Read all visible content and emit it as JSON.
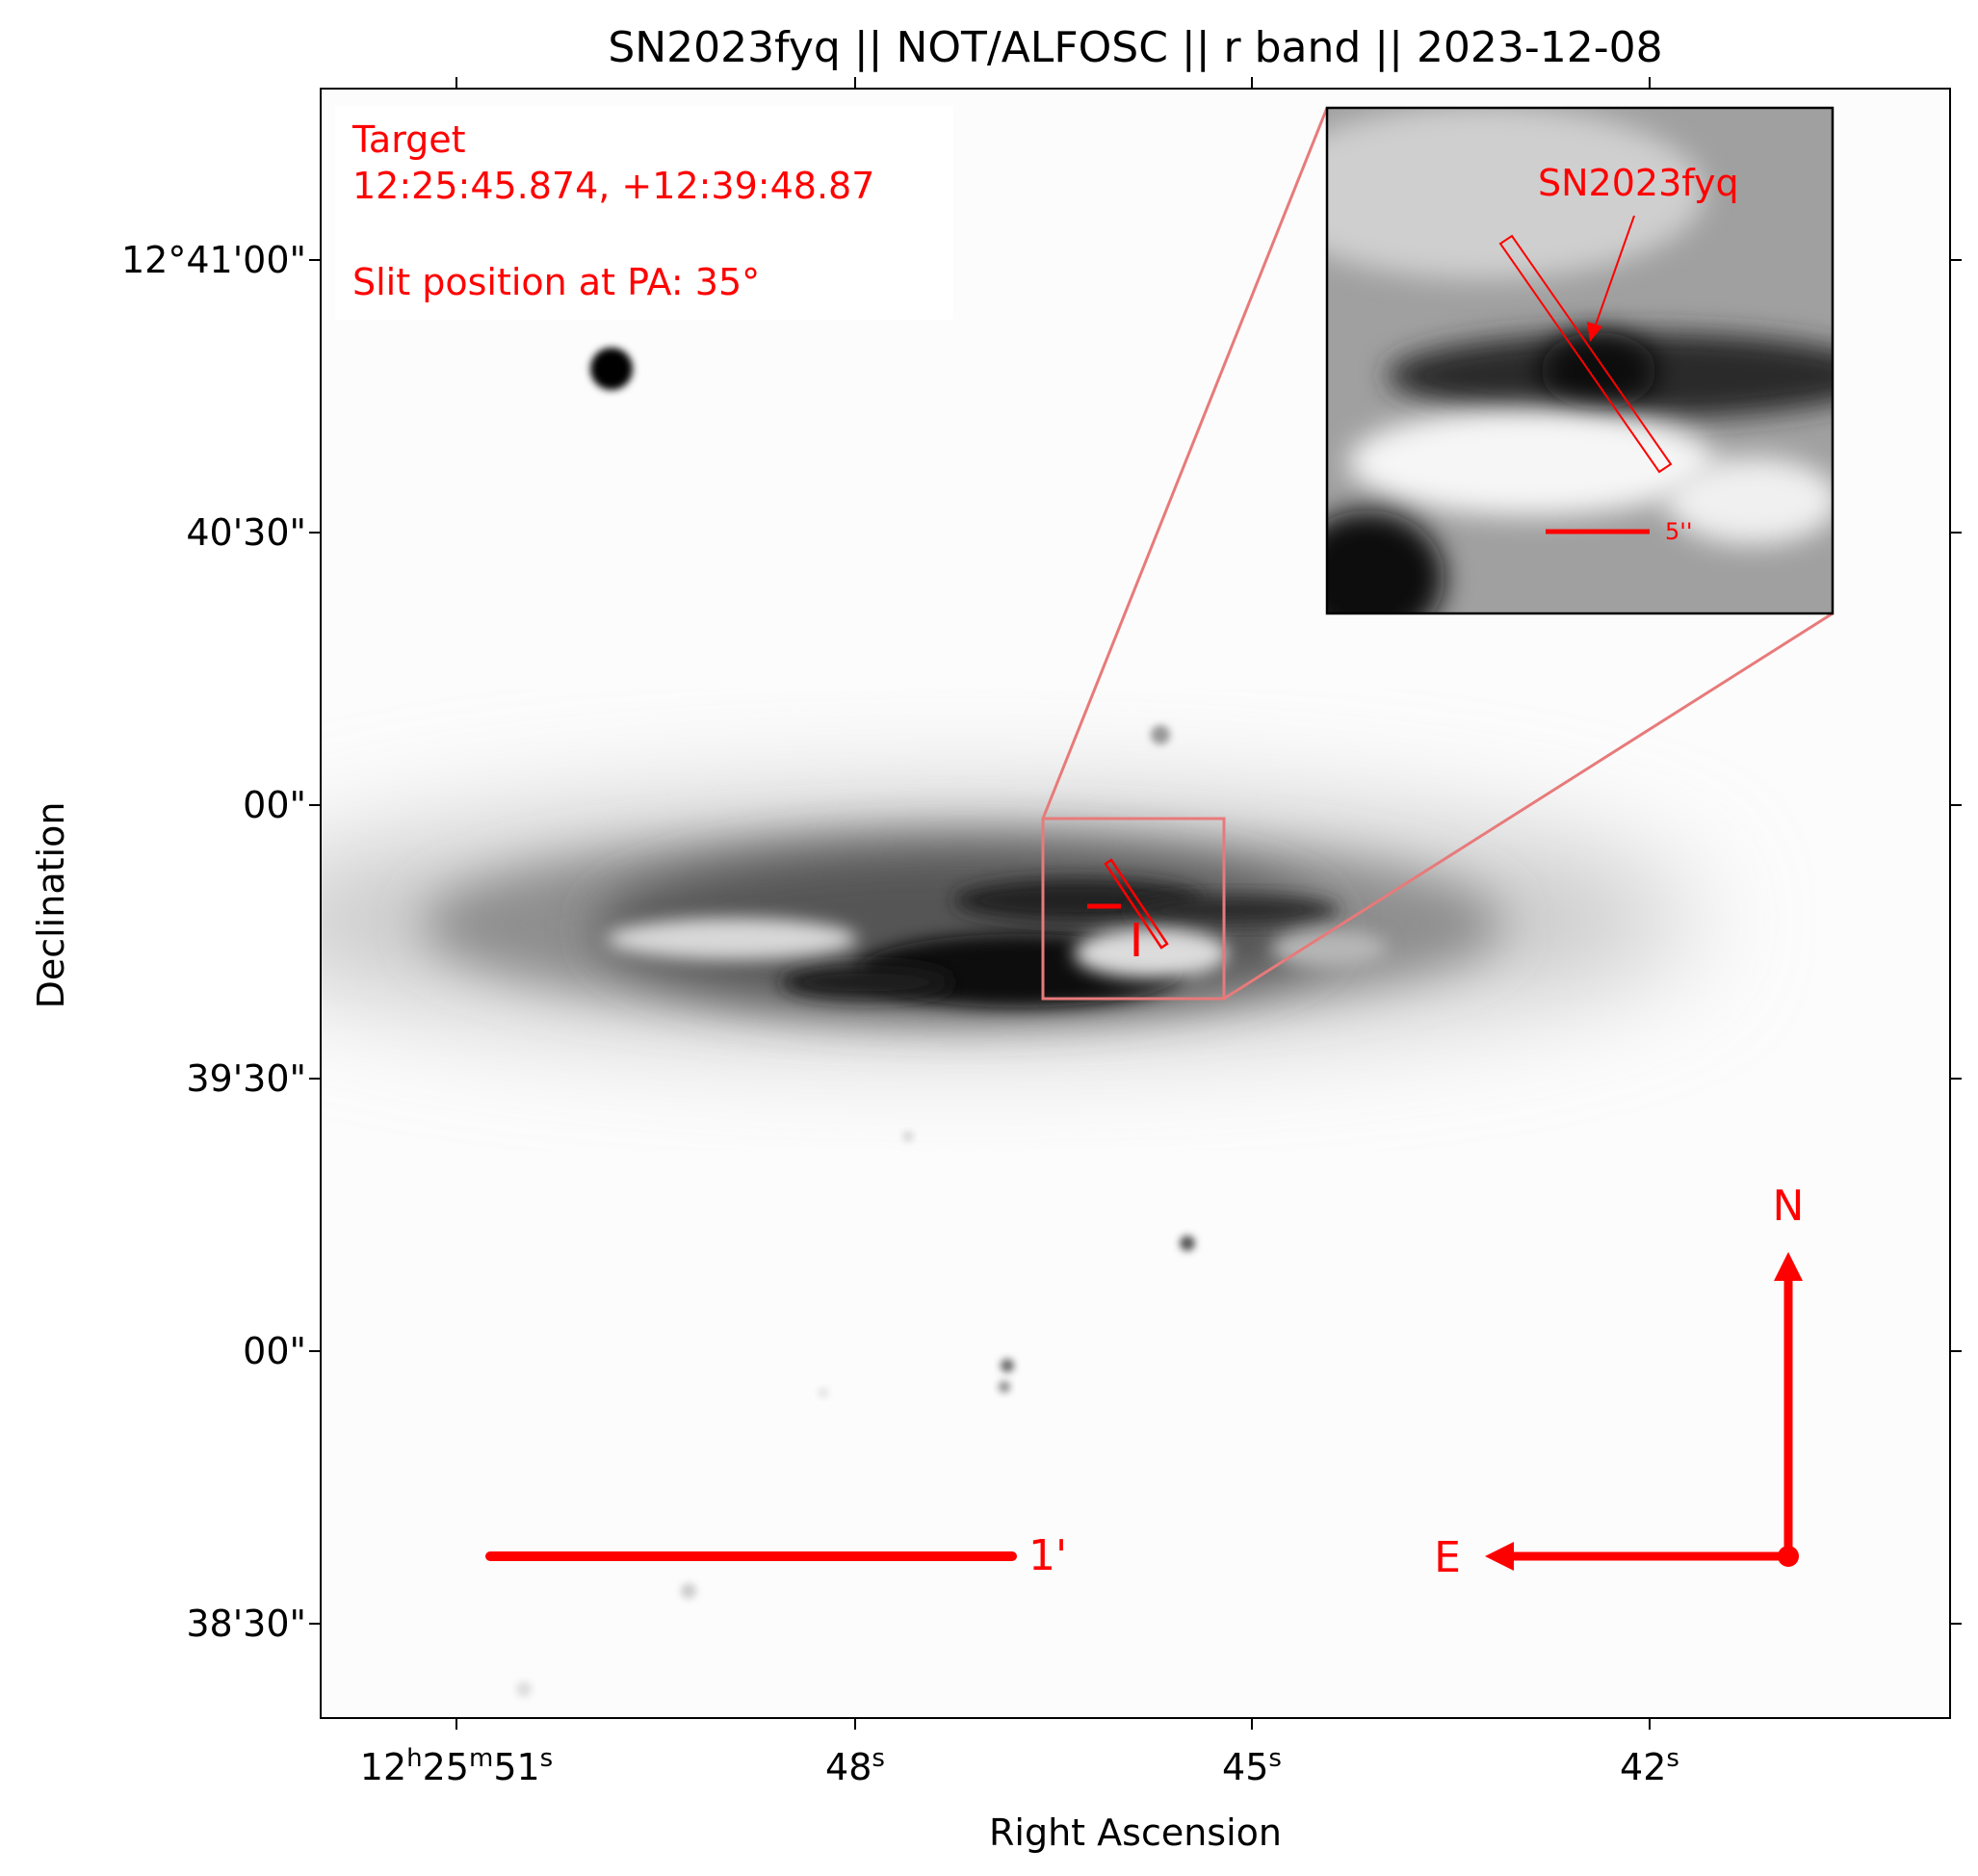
{
  "title": "SN2023fyq || NOT/ALFOSC || r band || 2023-12-08",
  "axes": {
    "xlabel": "Right Ascension",
    "ylabel": "Declination",
    "x_ticks": [
      {
        "hms": "12h25m51s",
        "h": "12",
        "m": "25",
        "s": "51"
      },
      {
        "hms": "48s",
        "s": "48"
      },
      {
        "hms": "45s",
        "s": "45"
      },
      {
        "hms": "42s",
        "s": "42"
      }
    ],
    "y_ticks": [
      "12°41'00\"",
      "40'30\"",
      "00\"",
      "39'30\"",
      "00\"",
      "38'30\""
    ]
  },
  "info_box": {
    "line1": "Target",
    "line2": "12:25:45.874, +12:39:48.87",
    "line3": "Slit position at PA: 35°"
  },
  "inset": {
    "label": "SN2023fyq",
    "scalebar_label": "5''"
  },
  "scalebar_label": "1'",
  "compass": {
    "north": "N",
    "east": "E"
  },
  "colors": {
    "annotation": "#ff0000",
    "zoom_lines": "#e87a7a"
  },
  "icons": [
    "north-arrow-icon",
    "east-arrow-icon",
    "target-crosshair-icon"
  ]
}
